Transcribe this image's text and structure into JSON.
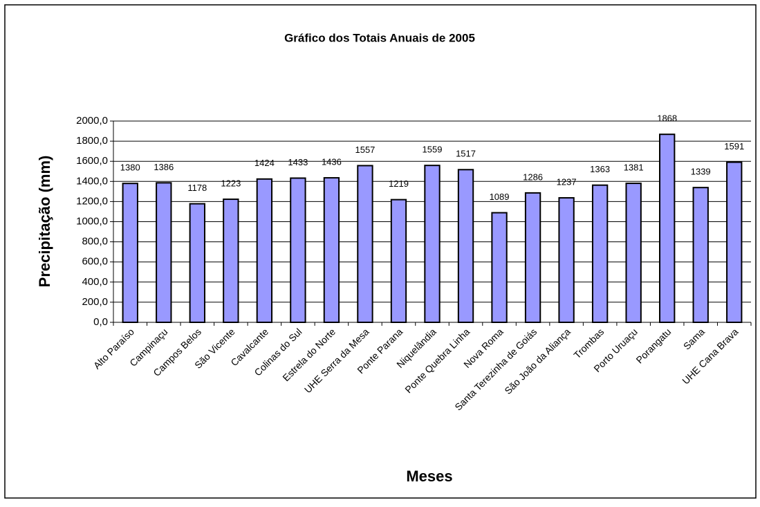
{
  "chart_data": {
    "type": "bar",
    "title": "Gráfico dos Totais Anuais de 2005",
    "x_label": "Meses",
    "y_label": "Precipitação (mm)",
    "categories": [
      "Alto Paraíso",
      "Campinaçu",
      "Campos Belos",
      "São Vicente",
      "Cavalcante",
      "Colinas do Sul",
      "Estrela do Norte",
      "UHE Serra da Mesa",
      "Ponte Parana",
      "Niquelândia",
      "Ponte Quebra Linha",
      "Nova Roma",
      "Santa Terezinha de Goiás",
      "São João da Aliança",
      "Trombas",
      "Porto Uruaçu",
      "Porangatu",
      "Sama",
      "UHE Cana Brava"
    ],
    "values": [
      1380,
      1386,
      1178,
      1223,
      1424,
      1433,
      1436,
      1557,
      1219,
      1559,
      1517,
      1089,
      1286,
      1237,
      1363,
      1381,
      1868,
      1339,
      1591
    ],
    "color": "#9999ff",
    "ylim": [
      0,
      2000
    ],
    "yticks": [
      {
        "value": 0,
        "label": "0,0"
      },
      {
        "value": 200,
        "label": "200,0"
      },
      {
        "value": 400,
        "label": "400,0"
      },
      {
        "value": 600,
        "label": "600,0"
      },
      {
        "value": 800,
        "label": "800,0"
      },
      {
        "value": 1000,
        "label": "1000,0"
      },
      {
        "value": 1200,
        "label": "1200,0"
      },
      {
        "value": 1400,
        "label": "1400,0"
      },
      {
        "value": 1600,
        "label": "1600,0"
      },
      {
        "value": 1800,
        "label": "1800,0"
      },
      {
        "value": 2000,
        "label": "2000,0"
      }
    ],
    "grid": true
  }
}
